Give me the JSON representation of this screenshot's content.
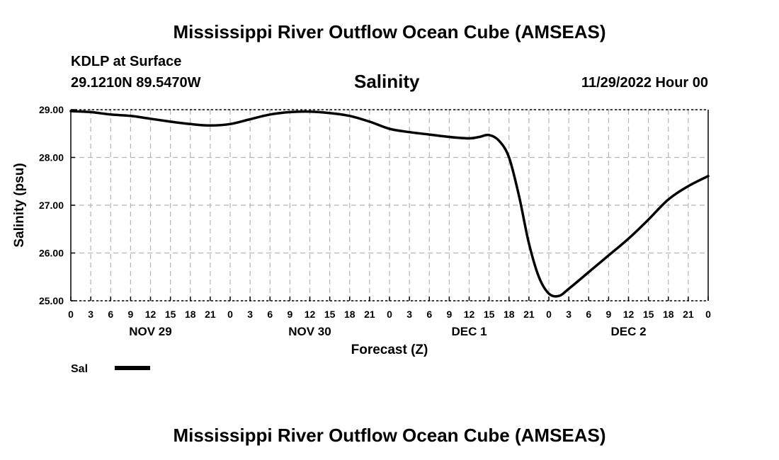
{
  "page_title": "Mississippi River Outflow Ocean Cube (AMSEAS)",
  "footer_title": "Mississippi River Outflow Ocean Cube (AMSEAS)",
  "station": {
    "name": "KDLP at Surface",
    "coords": "29.1210N  89.5470W",
    "valid_time": "11/29/2022 Hour 00"
  },
  "colors": {
    "line": "#000000",
    "grid": "#b4b4b4",
    "background": "#ffffff"
  },
  "chart_data": {
    "type": "line",
    "title": "Salinity",
    "xlabel": "Forecast (Z)",
    "ylabel": "Salinity (psu)",
    "ylim": [
      25.0,
      29.0
    ],
    "xlim": [
      0,
      96
    ],
    "grid": true,
    "y_ticks": [
      25.0,
      26.0,
      27.0,
      28.0,
      29.0
    ],
    "y_tick_labels": [
      "25.00",
      "26.00",
      "27.00",
      "28.00",
      "29.00"
    ],
    "x_ticks": [
      0,
      3,
      6,
      9,
      12,
      15,
      18,
      21,
      24,
      27,
      30,
      33,
      36,
      39,
      42,
      45,
      48,
      51,
      54,
      57,
      60,
      63,
      66,
      69,
      72,
      75,
      78,
      81,
      84,
      87,
      90,
      93,
      96
    ],
    "x_tick_labels": [
      "0",
      "3",
      "6",
      "9",
      "12",
      "15",
      "18",
      "21",
      "0",
      "3",
      "6",
      "9",
      "12",
      "15",
      "18",
      "21",
      "0",
      "3",
      "6",
      "9",
      "12",
      "15",
      "18",
      "21",
      "0",
      "3",
      "6",
      "9",
      "12",
      "15",
      "18",
      "21",
      "0"
    ],
    "day_labels": [
      {
        "label": "NOV 29",
        "at": 12
      },
      {
        "label": "NOV 30",
        "at": 36
      },
      {
        "label": "DEC 1",
        "at": 60
      },
      {
        "label": "DEC 2",
        "at": 84
      }
    ],
    "legend": {
      "position": "bottom-left",
      "entries": [
        {
          "label": "Sal"
        }
      ]
    },
    "series": [
      {
        "name": "Sal",
        "x": [
          0,
          3,
          6,
          9,
          12,
          15,
          18,
          21,
          24,
          27,
          30,
          33,
          36,
          39,
          42,
          45,
          48,
          51,
          54,
          57,
          60,
          61.5,
          63,
          64.5,
          66,
          67.5,
          69,
          70.5,
          72,
          73.5,
          75,
          78,
          81,
          84,
          87,
          90,
          93,
          96
        ],
        "values": [
          28.97,
          28.95,
          28.9,
          28.87,
          28.81,
          28.75,
          28.7,
          28.67,
          28.7,
          28.8,
          28.9,
          28.95,
          28.96,
          28.93,
          28.87,
          28.75,
          28.6,
          28.53,
          28.48,
          28.43,
          28.4,
          28.43,
          28.47,
          28.35,
          28.0,
          27.2,
          26.2,
          25.5,
          25.15,
          25.1,
          25.25,
          25.6,
          25.95,
          26.3,
          26.7,
          27.12,
          27.4,
          27.61
        ]
      }
    ]
  }
}
